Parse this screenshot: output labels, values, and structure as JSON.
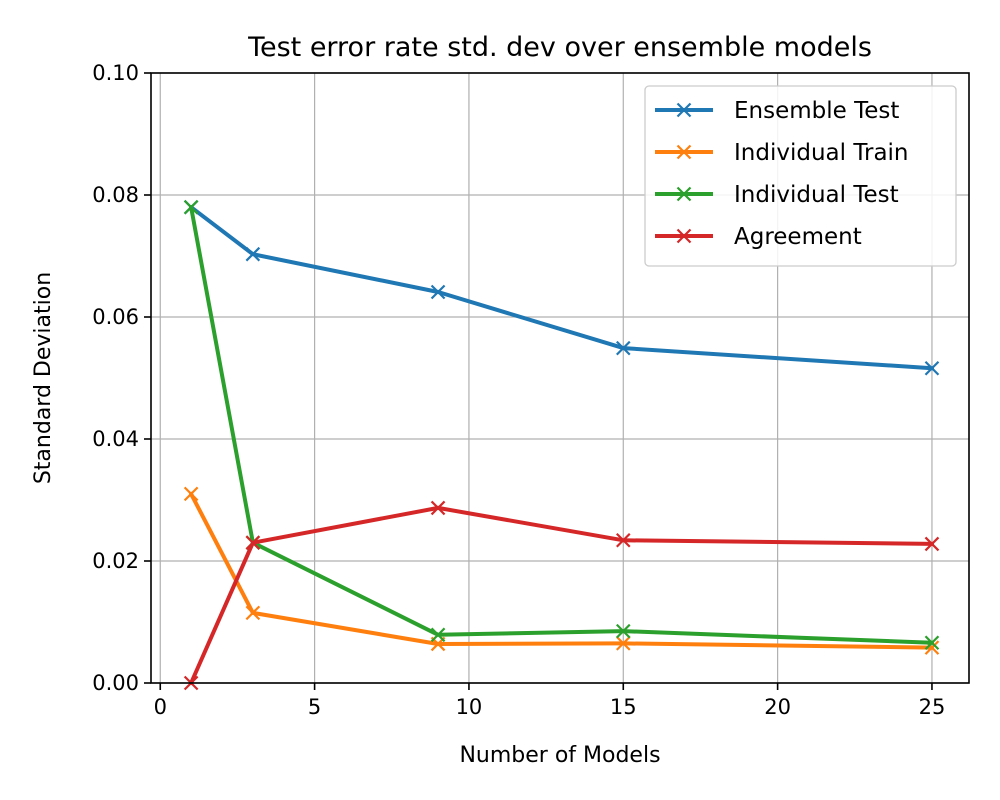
{
  "chart_data": {
    "type": "line",
    "title": "Test error rate std. dev over ensemble models",
    "xlabel": "Number of Models",
    "ylabel": "Standard Deviation",
    "xlim": [
      -0.3,
      26.2
    ],
    "ylim": [
      0.0,
      0.1
    ],
    "xticks": [
      0,
      5,
      10,
      15,
      20,
      25
    ],
    "xtick_labels": [
      "0",
      "5",
      "10",
      "15",
      "20",
      "25"
    ],
    "yticks": [
      0.0,
      0.02,
      0.04,
      0.06,
      0.08,
      0.1
    ],
    "ytick_labels": [
      "0.00",
      "0.02",
      "0.04",
      "0.06",
      "0.08",
      "0.10"
    ],
    "grid": true,
    "legend_position": "top-right",
    "marker": "x",
    "x": [
      1,
      3,
      9,
      15,
      25
    ],
    "series": [
      {
        "name": "Ensemble Test",
        "color": "#1f77b4",
        "values": [
          0.078,
          0.0703,
          0.0641,
          0.0549,
          0.0516
        ]
      },
      {
        "name": "Individual Train",
        "color": "#ff7f0e",
        "values": [
          0.031,
          0.0115,
          0.0064,
          0.0065,
          0.0058
        ]
      },
      {
        "name": "Individual Test",
        "color": "#2ca02c",
        "values": [
          0.078,
          0.023,
          0.0079,
          0.0085,
          0.0066
        ]
      },
      {
        "name": "Agreement",
        "color": "#d62728",
        "values": [
          0.0,
          0.023,
          0.0287,
          0.0234,
          0.0228
        ]
      }
    ]
  }
}
